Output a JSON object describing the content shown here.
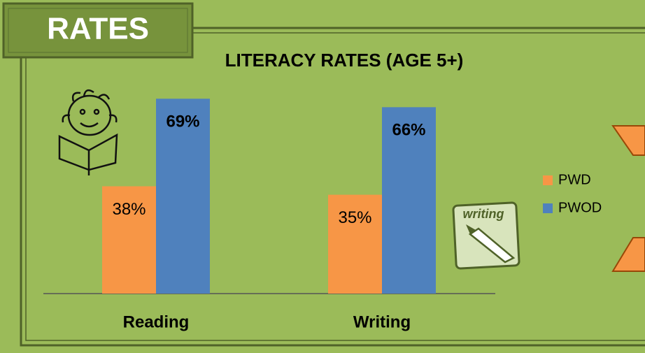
{
  "header": {
    "title": "RATES"
  },
  "icon_label": "writing",
  "chart_data": {
    "type": "bar",
    "title": "LITERACY RATES (AGE 5+)",
    "categories": [
      "Reading",
      "Writing"
    ],
    "series": [
      {
        "name": "PWD",
        "color": "#f79646",
        "values": [
          38,
          35
        ],
        "value_labels": [
          "38%",
          "35%"
        ]
      },
      {
        "name": "PWOD",
        "color": "#4f81bd",
        "values": [
          69,
          66
        ],
        "value_labels": [
          "69%",
          "66%"
        ]
      }
    ],
    "legend": "right"
  }
}
